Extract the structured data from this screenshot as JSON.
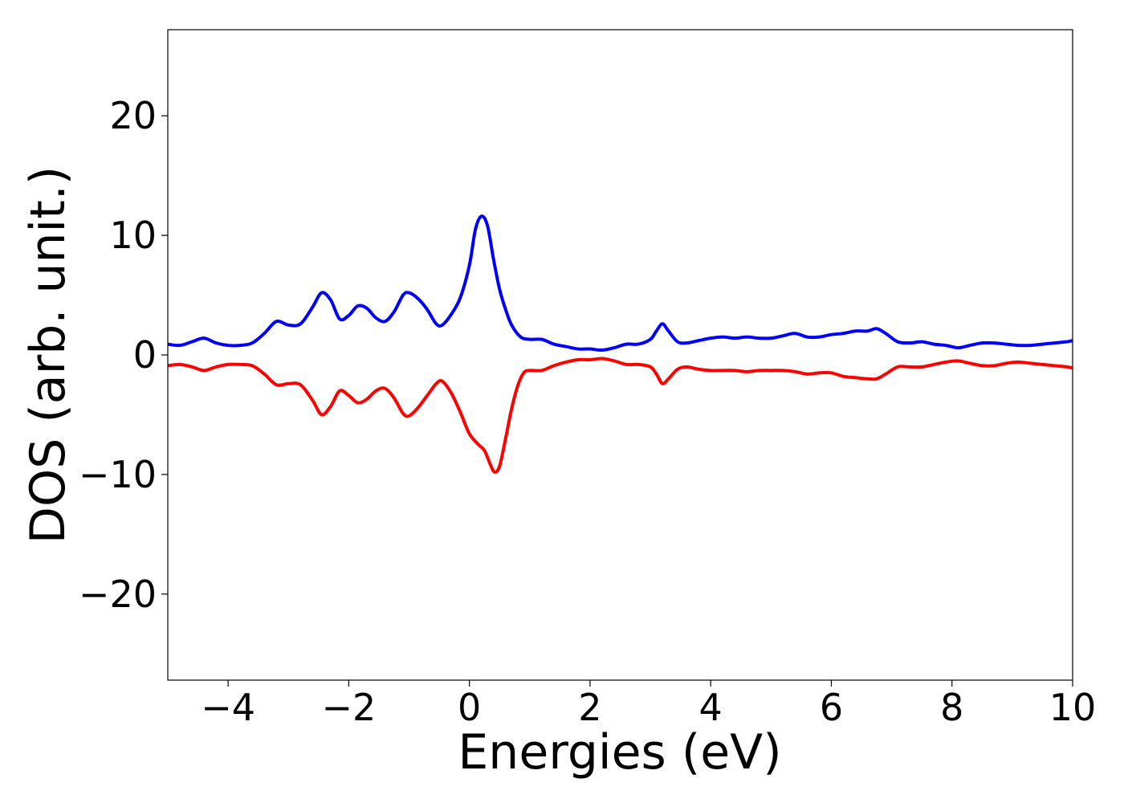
{
  "chart_data": {
    "type": "line",
    "title": "",
    "xlabel": "Energies (eV)",
    "ylabel": "DOS (arb. unit.)",
    "xlim": [
      -5,
      10
    ],
    "ylim": [
      -27.2,
      27.2
    ],
    "xticks": [
      -4,
      -2,
      0,
      2,
      4,
      6,
      8,
      10
    ],
    "xtick_labels": [
      "−4",
      "−2",
      "0",
      "2",
      "4",
      "6",
      "8",
      "10"
    ],
    "yticks": [
      -20,
      -10,
      0,
      10,
      20
    ],
    "ytick_labels": [
      "−20",
      "−10",
      "0",
      "10",
      "20"
    ],
    "grid": false,
    "legend": "none",
    "series": [
      {
        "color": "#0000ff",
        "points": [
          [
            -5.0,
            0.9
          ],
          [
            -4.8,
            0.8
          ],
          [
            -4.6,
            1.1
          ],
          [
            -4.4,
            1.4
          ],
          [
            -4.2,
            1.0
          ],
          [
            -4.0,
            0.8
          ],
          [
            -3.8,
            0.8
          ],
          [
            -3.6,
            1.0
          ],
          [
            -3.4,
            1.8
          ],
          [
            -3.2,
            2.8
          ],
          [
            -3.0,
            2.5
          ],
          [
            -2.8,
            2.6
          ],
          [
            -2.6,
            4.0
          ],
          [
            -2.45,
            5.2
          ],
          [
            -2.3,
            4.6
          ],
          [
            -2.15,
            3.0
          ],
          [
            -2.0,
            3.3
          ],
          [
            -1.85,
            4.1
          ],
          [
            -1.7,
            3.9
          ],
          [
            -1.55,
            3.1
          ],
          [
            -1.4,
            2.8
          ],
          [
            -1.25,
            3.6
          ],
          [
            -1.1,
            5.0
          ],
          [
            -1.0,
            5.2
          ],
          [
            -0.85,
            4.7
          ],
          [
            -0.7,
            3.8
          ],
          [
            -0.55,
            2.6
          ],
          [
            -0.45,
            2.5
          ],
          [
            -0.3,
            3.4
          ],
          [
            -0.15,
            4.8
          ],
          [
            0.0,
            7.5
          ],
          [
            0.1,
            10.5
          ],
          [
            0.2,
            11.6
          ],
          [
            0.3,
            10.8
          ],
          [
            0.4,
            8.0
          ],
          [
            0.5,
            5.5
          ],
          [
            0.6,
            3.8
          ],
          [
            0.7,
            2.5
          ],
          [
            0.85,
            1.5
          ],
          [
            1.0,
            1.3
          ],
          [
            1.2,
            1.3
          ],
          [
            1.4,
            0.9
          ],
          [
            1.6,
            0.7
          ],
          [
            1.8,
            0.5
          ],
          [
            2.0,
            0.5
          ],
          [
            2.2,
            0.4
          ],
          [
            2.4,
            0.6
          ],
          [
            2.6,
            0.9
          ],
          [
            2.8,
            0.9
          ],
          [
            3.0,
            1.3
          ],
          [
            3.1,
            2.0
          ],
          [
            3.2,
            2.6
          ],
          [
            3.3,
            2.0
          ],
          [
            3.45,
            1.1
          ],
          [
            3.6,
            1.0
          ],
          [
            3.8,
            1.2
          ],
          [
            4.0,
            1.4
          ],
          [
            4.2,
            1.5
          ],
          [
            4.4,
            1.4
          ],
          [
            4.6,
            1.5
          ],
          [
            4.8,
            1.4
          ],
          [
            5.0,
            1.4
          ],
          [
            5.2,
            1.6
          ],
          [
            5.4,
            1.8
          ],
          [
            5.6,
            1.5
          ],
          [
            5.8,
            1.5
          ],
          [
            6.0,
            1.7
          ],
          [
            6.2,
            1.8
          ],
          [
            6.4,
            2.0
          ],
          [
            6.6,
            2.0
          ],
          [
            6.75,
            2.2
          ],
          [
            6.9,
            1.8
          ],
          [
            7.1,
            1.1
          ],
          [
            7.3,
            1.0
          ],
          [
            7.5,
            1.1
          ],
          [
            7.7,
            0.9
          ],
          [
            7.9,
            0.8
          ],
          [
            8.1,
            0.6
          ],
          [
            8.3,
            0.8
          ],
          [
            8.5,
            1.0
          ],
          [
            8.7,
            1.0
          ],
          [
            8.9,
            0.9
          ],
          [
            9.1,
            0.8
          ],
          [
            9.3,
            0.8
          ],
          [
            9.5,
            0.9
          ],
          [
            9.7,
            1.0
          ],
          [
            9.9,
            1.1
          ],
          [
            10.0,
            1.2
          ]
        ]
      },
      {
        "color": "#ff0000",
        "points": [
          [
            -5.0,
            -0.9
          ],
          [
            -4.8,
            -0.8
          ],
          [
            -4.6,
            -1.0
          ],
          [
            -4.4,
            -1.3
          ],
          [
            -4.2,
            -1.0
          ],
          [
            -4.0,
            -0.8
          ],
          [
            -3.8,
            -0.8
          ],
          [
            -3.6,
            -0.9
          ],
          [
            -3.4,
            -1.6
          ],
          [
            -3.2,
            -2.5
          ],
          [
            -3.0,
            -2.4
          ],
          [
            -2.8,
            -2.5
          ],
          [
            -2.6,
            -3.8
          ],
          [
            -2.45,
            -5.0
          ],
          [
            -2.3,
            -4.3
          ],
          [
            -2.15,
            -3.0
          ],
          [
            -2.0,
            -3.4
          ],
          [
            -1.85,
            -4.0
          ],
          [
            -1.7,
            -3.7
          ],
          [
            -1.55,
            -3.0
          ],
          [
            -1.4,
            -2.8
          ],
          [
            -1.25,
            -3.6
          ],
          [
            -1.1,
            -4.9
          ],
          [
            -1.0,
            -5.1
          ],
          [
            -0.85,
            -4.4
          ],
          [
            -0.7,
            -3.4
          ],
          [
            -0.55,
            -2.4
          ],
          [
            -0.45,
            -2.2
          ],
          [
            -0.3,
            -3.2
          ],
          [
            -0.15,
            -4.8
          ],
          [
            0.0,
            -6.6
          ],
          [
            0.15,
            -7.5
          ],
          [
            0.25,
            -8.0
          ],
          [
            0.35,
            -9.2
          ],
          [
            0.42,
            -9.8
          ],
          [
            0.5,
            -9.3
          ],
          [
            0.6,
            -7.0
          ],
          [
            0.7,
            -4.5
          ],
          [
            0.8,
            -2.6
          ],
          [
            0.9,
            -1.5
          ],
          [
            1.0,
            -1.3
          ],
          [
            1.2,
            -1.3
          ],
          [
            1.4,
            -0.9
          ],
          [
            1.6,
            -0.6
          ],
          [
            1.8,
            -0.4
          ],
          [
            2.0,
            -0.4
          ],
          [
            2.2,
            -0.3
          ],
          [
            2.4,
            -0.5
          ],
          [
            2.6,
            -0.8
          ],
          [
            2.8,
            -0.8
          ],
          [
            3.0,
            -1.0
          ],
          [
            3.1,
            -1.6
          ],
          [
            3.2,
            -2.4
          ],
          [
            3.3,
            -2.0
          ],
          [
            3.45,
            -1.2
          ],
          [
            3.6,
            -1.0
          ],
          [
            3.8,
            -1.2
          ],
          [
            4.0,
            -1.3
          ],
          [
            4.2,
            -1.3
          ],
          [
            4.4,
            -1.3
          ],
          [
            4.6,
            -1.4
          ],
          [
            4.8,
            -1.3
          ],
          [
            5.0,
            -1.3
          ],
          [
            5.2,
            -1.3
          ],
          [
            5.4,
            -1.4
          ],
          [
            5.6,
            -1.6
          ],
          [
            5.8,
            -1.5
          ],
          [
            6.0,
            -1.5
          ],
          [
            6.2,
            -1.8
          ],
          [
            6.4,
            -1.9
          ],
          [
            6.6,
            -2.0
          ],
          [
            6.75,
            -2.0
          ],
          [
            6.9,
            -1.6
          ],
          [
            7.1,
            -1.0
          ],
          [
            7.3,
            -1.0
          ],
          [
            7.5,
            -1.0
          ],
          [
            7.7,
            -0.8
          ],
          [
            7.9,
            -0.6
          ],
          [
            8.1,
            -0.5
          ],
          [
            8.3,
            -0.7
          ],
          [
            8.5,
            -0.9
          ],
          [
            8.7,
            -0.9
          ],
          [
            8.9,
            -0.7
          ],
          [
            9.1,
            -0.6
          ],
          [
            9.3,
            -0.7
          ],
          [
            9.5,
            -0.8
          ],
          [
            9.7,
            -0.9
          ],
          [
            9.9,
            -1.0
          ],
          [
            10.0,
            -1.1
          ]
        ]
      }
    ]
  }
}
